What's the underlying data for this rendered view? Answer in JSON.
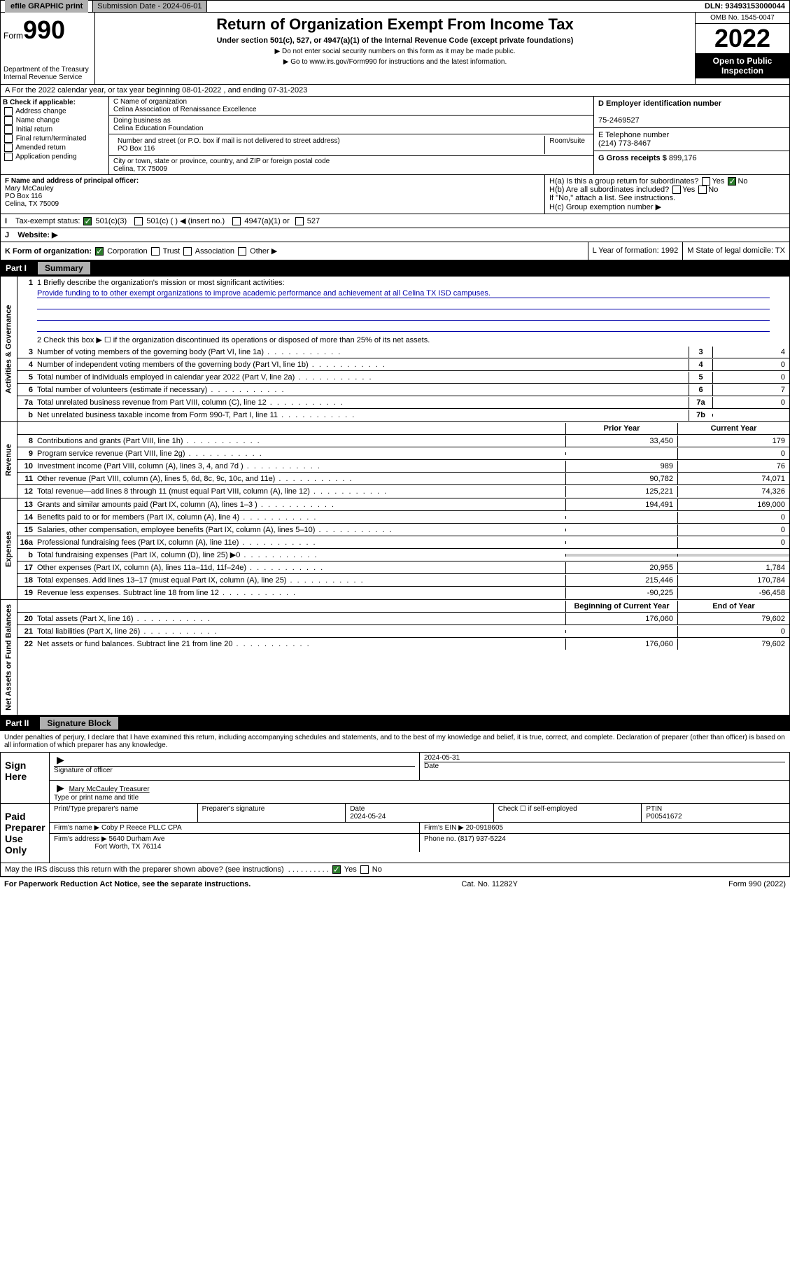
{
  "top": {
    "efile": "efile GRAPHIC print",
    "sub_label": "Submission Date - 2024-06-01",
    "dln": "DLN: 93493153000044"
  },
  "header": {
    "form": "Form",
    "num": "990",
    "title": "Return of Organization Exempt From Income Tax",
    "subtitle": "Under section 501(c), 527, or 4947(a)(1) of the Internal Revenue Code (except private foundations)",
    "note1": "▶ Do not enter social security numbers on this form as it may be made public.",
    "note2": "▶ Go to www.irs.gov/Form990 for instructions and the latest information.",
    "dept": "Department of the Treasury Internal Revenue Service",
    "omb": "OMB No. 1545-0047",
    "year": "2022",
    "open": "Open to Public Inspection"
  },
  "rowA": "A For the 2022 calendar year, or tax year beginning 08-01-2022   , and ending 07-31-2023",
  "B": {
    "label": "B Check if applicable:",
    "opts": [
      "Address change",
      "Name change",
      "Initial return",
      "Final return/terminated",
      "Amended return",
      "Application pending"
    ]
  },
  "C": {
    "name_label": "C Name of organization",
    "name": "Celina Association of Renaissance Excellence",
    "dba_label": "Doing business as",
    "dba": "Celina Education Foundation",
    "addr_label": "Number and street (or P.O. box if mail is not delivered to street address)",
    "room_label": "Room/suite",
    "addr": "PO Box 116",
    "city_label": "City or town, state or province, country, and ZIP or foreign postal code",
    "city": "Celina, TX  75009"
  },
  "D": {
    "label": "D Employer identification number",
    "val": "75-2469527"
  },
  "E": {
    "label": "E Telephone number",
    "val": "(214) 773-8467"
  },
  "G": {
    "label": "G Gross receipts $",
    "val": "899,176"
  },
  "F": {
    "label": "F  Name and address of principal officer:",
    "name": "Mary McCauley",
    "addr1": "PO Box 116",
    "addr2": "Celina, TX  75009"
  },
  "H": {
    "a": "H(a)  Is this a group return for subordinates?",
    "b": "H(b)  Are all subordinates included?",
    "b2": "If \"No,\" attach a list. See instructions.",
    "c": "H(c)  Group exemption number ▶"
  },
  "I": {
    "label": "Tax-exempt status:",
    "opt1": "501(c)(3)",
    "opt2": "501(c) (  ) ◀ (insert no.)",
    "opt3": "4947(a)(1) or",
    "opt4": "527"
  },
  "J": "Website: ▶",
  "K": "K Form of organization:",
  "K_opts": [
    "Corporation",
    "Trust",
    "Association",
    "Other ▶"
  ],
  "L": "L Year of formation: 1992",
  "M": "M State of legal domicile: TX",
  "partI": {
    "num": "Part I",
    "title": "Summary"
  },
  "mission": {
    "q": "1  Briefly describe the organization's mission or most significant activities:",
    "text": "Provide funding to to other exempt organizations to improve academic performance and achievement at all Celina TX ISD campuses."
  },
  "line2": "2    Check this box ▶ ☐  if the organization discontinued its operations or disposed of more than 25% of its net assets.",
  "lines_gov": [
    {
      "n": "3",
      "t": "Number of voting members of the governing body (Part VI, line 1a)",
      "box": "3",
      "v": "4"
    },
    {
      "n": "4",
      "t": "Number of independent voting members of the governing body (Part VI, line 1b)",
      "box": "4",
      "v": "0"
    },
    {
      "n": "5",
      "t": "Total number of individuals employed in calendar year 2022 (Part V, line 2a)",
      "box": "5",
      "v": "0"
    },
    {
      "n": "6",
      "t": "Total number of volunteers (estimate if necessary)",
      "box": "6",
      "v": "7"
    },
    {
      "n": "7a",
      "t": "Total unrelated business revenue from Part VIII, column (C), line 12",
      "box": "7a",
      "v": "0"
    },
    {
      "n": "b",
      "t": "Net unrelated business taxable income from Form 990-T, Part I, line 11",
      "box": "7b",
      "v": ""
    }
  ],
  "col_hdrs": {
    "prior": "Prior Year",
    "curr": "Current Year"
  },
  "rev": [
    {
      "n": "8",
      "t": "Contributions and grants (Part VIII, line 1h)",
      "p": "33,450",
      "c": "179"
    },
    {
      "n": "9",
      "t": "Program service revenue (Part VIII, line 2g)",
      "p": "",
      "c": "0"
    },
    {
      "n": "10",
      "t": "Investment income (Part VIII, column (A), lines 3, 4, and 7d )",
      "p": "989",
      "c": "76"
    },
    {
      "n": "11",
      "t": "Other revenue (Part VIII, column (A), lines 5, 6d, 8c, 9c, 10c, and 11e)",
      "p": "90,782",
      "c": "74,071"
    },
    {
      "n": "12",
      "t": "Total revenue—add lines 8 through 11 (must equal Part VIII, column (A), line 12)",
      "p": "125,221",
      "c": "74,326"
    }
  ],
  "exp": [
    {
      "n": "13",
      "t": "Grants and similar amounts paid (Part IX, column (A), lines 1–3 )",
      "p": "194,491",
      "c": "169,000"
    },
    {
      "n": "14",
      "t": "Benefits paid to or for members (Part IX, column (A), line 4)",
      "p": "",
      "c": "0"
    },
    {
      "n": "15",
      "t": "Salaries, other compensation, employee benefits (Part IX, column (A), lines 5–10)",
      "p": "",
      "c": "0"
    },
    {
      "n": "16a",
      "t": "Professional fundraising fees (Part IX, column (A), line 11e)",
      "p": "",
      "c": "0"
    },
    {
      "n": "b",
      "t": "Total fundraising expenses (Part IX, column (D), line 25) ▶0",
      "p": "GRAY",
      "c": "GRAY"
    },
    {
      "n": "17",
      "t": "Other expenses (Part IX, column (A), lines 11a–11d, 11f–24e)",
      "p": "20,955",
      "c": "1,784"
    },
    {
      "n": "18",
      "t": "Total expenses. Add lines 13–17 (must equal Part IX, column (A), line 25)",
      "p": "215,446",
      "c": "170,784"
    },
    {
      "n": "19",
      "t": "Revenue less expenses. Subtract line 18 from line 12",
      "p": "-90,225",
      "c": "-96,458"
    }
  ],
  "net_hdrs": {
    "beg": "Beginning of Current Year",
    "end": "End of Year"
  },
  "net": [
    {
      "n": "20",
      "t": "Total assets (Part X, line 16)",
      "p": "176,060",
      "c": "79,602"
    },
    {
      "n": "21",
      "t": "Total liabilities (Part X, line 26)",
      "p": "",
      "c": "0"
    },
    {
      "n": "22",
      "t": "Net assets or fund balances. Subtract line 21 from line 20",
      "p": "176,060",
      "c": "79,602"
    }
  ],
  "side_labels": {
    "gov": "Activities & Governance",
    "rev": "Revenue",
    "exp": "Expenses",
    "net": "Net Assets or Fund Balances"
  },
  "partII": {
    "num": "Part II",
    "title": "Signature Block"
  },
  "sig_intro": "Under penalties of perjury, I declare that I have examined this return, including accompanying schedules and statements, and to the best of my knowledge and belief, it is true, correct, and complete. Declaration of preparer (other than officer) is based on all information of which preparer has any knowledge.",
  "sign": {
    "left": "Sign Here",
    "sig_label": "Signature of officer",
    "date": "2024-05-31",
    "date_label": "Date",
    "name": "Mary McCauley Treasurer",
    "name_label": "Type or print name and title"
  },
  "paid": {
    "left": "Paid Preparer Use Only",
    "h1": "Print/Type preparer's name",
    "h2": "Preparer's signature",
    "h3": "Date",
    "h4": "Check ☐ if self-employed",
    "h5": "PTIN",
    "date": "2024-05-24",
    "ptin": "P00541672",
    "firm_label": "Firm's name   ▶",
    "firm": "Coby P Reece PLLC CPA",
    "ein_label": "Firm's EIN ▶",
    "ein": "20-0918605",
    "addr_label": "Firm's address ▶",
    "addr1": "5640 Durham Ave",
    "addr2": "Fort Worth, TX  76114",
    "phone_label": "Phone no.",
    "phone": "(817) 937-5224"
  },
  "may": "May the IRS discuss this return with the preparer shown above? (see instructions)",
  "footer": {
    "left": "For Paperwork Reduction Act Notice, see the separate instructions.",
    "mid": "Cat. No. 11282Y",
    "right": "Form 990 (2022)"
  }
}
